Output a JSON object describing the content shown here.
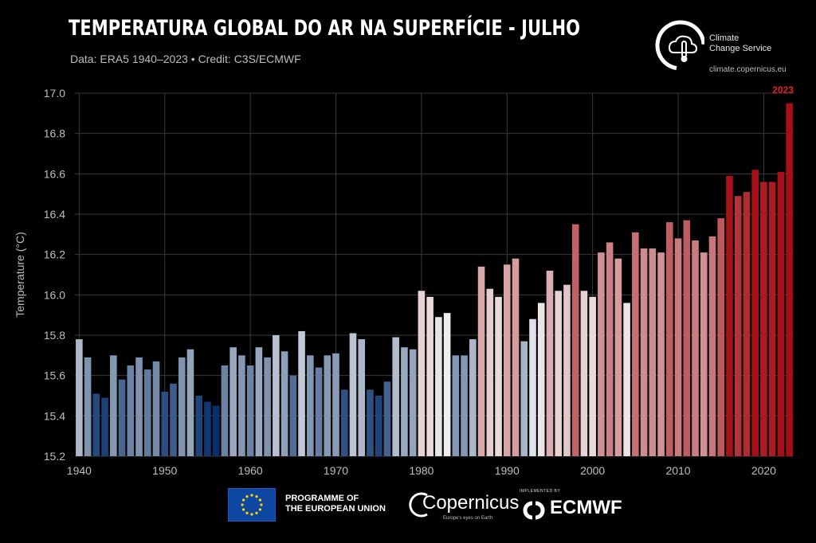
{
  "header": {
    "title": "TEMPERATURA GLOBAL DO AR NA SUPERFÍCIE - JULHO",
    "subtitle": "Data: ERA5 1940–2023 • Credit: C3S/ECMWF"
  },
  "brand": {
    "name_line1": "Climate",
    "name_line2": "Change Service",
    "url": "climate.copernicus.eu"
  },
  "footer": {
    "eu_line1": "PROGRAMME OF",
    "eu_line2": "THE EUROPEAN UNION",
    "copernicus": "Copernicus",
    "copernicus_tagline": "Europe's eyes on Earth",
    "implemented_by": "IMPLEMENTED BY",
    "ecmwf": "ECMWF"
  },
  "colors": {
    "background": "#000000",
    "cold": "#08306b",
    "neutral": "#f2f2f2",
    "warm": "#a50f15",
    "highlight_label": "#e0202a",
    "eu_blue": "#0e47a1",
    "eu_star": "#ffd700"
  },
  "chart_data": {
    "type": "bar",
    "ylabel": "Temperature (°C)",
    "ylim": [
      15.2,
      17.0
    ],
    "yticks": [
      "15.2",
      "15.4",
      "15.6",
      "15.8",
      "16.0",
      "16.2",
      "16.4",
      "16.6",
      "16.8",
      "17.0"
    ],
    "xticks": [
      "1940",
      "1950",
      "1960",
      "1970",
      "1980",
      "1990",
      "2000",
      "2010",
      "2020"
    ],
    "grid": true,
    "highlight": {
      "year": 2023,
      "label": "2023"
    },
    "x_start": 1940,
    "values": [
      15.78,
      15.69,
      15.51,
      15.49,
      15.7,
      15.58,
      15.65,
      15.69,
      15.63,
      15.67,
      15.52,
      15.56,
      15.69,
      15.73,
      15.5,
      15.47,
      15.45,
      15.65,
      15.74,
      15.7,
      15.65,
      15.74,
      15.69,
      15.8,
      15.72,
      15.6,
      15.82,
      15.7,
      15.64,
      15.7,
      15.71,
      15.53,
      15.81,
      15.78,
      15.53,
      15.5,
      15.57,
      15.79,
      15.74,
      15.73,
      16.02,
      15.99,
      15.89,
      15.91,
      15.7,
      15.7,
      15.78,
      16.14,
      16.03,
      15.99,
      16.15,
      16.18,
      15.77,
      15.88,
      15.96,
      16.12,
      16.02,
      16.05,
      16.35,
      16.02,
      15.99,
      16.21,
      16.26,
      16.18,
      15.96,
      16.31,
      16.23,
      16.23,
      16.21,
      16.36,
      16.28,
      16.37,
      16.27,
      16.21,
      16.29,
      16.38,
      16.59,
      16.49,
      16.51,
      16.62,
      16.56,
      16.56,
      16.61,
      16.95
    ]
  }
}
